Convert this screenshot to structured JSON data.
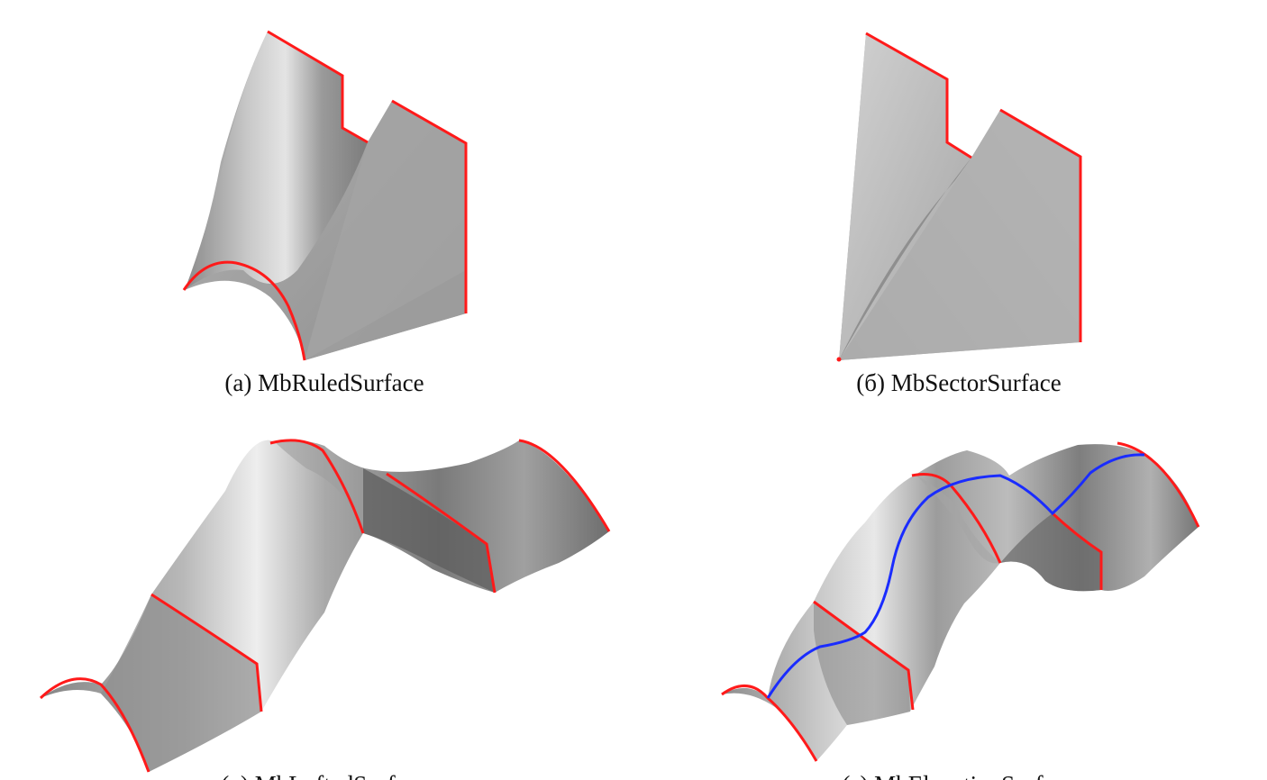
{
  "figure": {
    "panels": [
      {
        "id": "a",
        "caption": "(a) MbRuledSurface"
      },
      {
        "id": "b",
        "caption": "(б) MbSectorSurface"
      },
      {
        "id": "c",
        "caption": "(в) MbLoftedSurface"
      },
      {
        "id": "d",
        "caption": "(г) MbElevationSurface"
      }
    ],
    "colors": {
      "boundary": "#ff1a1a",
      "guide": "#1a2cff",
      "surface_light": "#e6e6e6",
      "surface_mid": "#a8a8a8",
      "surface_dark": "#5a5a5a"
    }
  }
}
